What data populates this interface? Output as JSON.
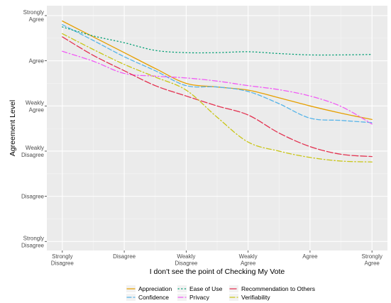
{
  "chart_data": {
    "type": "line",
    "xlabel": "I don't see the point of Checking My Vote",
    "ylabel": "Agreement Level",
    "x_categories": [
      [
        "Strongly",
        "Disagree"
      ],
      [
        "Disagree"
      ],
      [
        "Weakly",
        "Disagree"
      ],
      [
        "Weakly",
        "Agree"
      ],
      [
        "Agree"
      ],
      [
        "Strongly",
        "Agree"
      ]
    ],
    "y_categories": [
      [
        "Strongly",
        "Disagree"
      ],
      [
        "Disagree"
      ],
      [
        "Weakly",
        "Disagree"
      ],
      [
        "Weakly",
        "Agree"
      ],
      [
        "Agree"
      ],
      [
        "Strongly",
        "Agree"
      ]
    ],
    "xlim": [
      0.75,
      6.25
    ],
    "ylim": [
      0.8,
      6.22
    ],
    "grid": true,
    "legend_position": "bottom",
    "series": [
      {
        "name": "Appreciation",
        "color": "#E69F00",
        "dash": "solid",
        "x": [
          1,
          1.5,
          2,
          2.5,
          3,
          3.5,
          4,
          4.5,
          5,
          5.5,
          6
        ],
        "y": [
          5.88,
          5.53,
          5.18,
          4.83,
          4.5,
          4.42,
          4.35,
          4.18,
          4.0,
          3.84,
          3.7
        ]
      },
      {
        "name": "Confidence",
        "color": "#56B4E9",
        "dash": "6,3",
        "x": [
          1,
          1.5,
          2,
          2.5,
          3,
          3.5,
          4,
          4.5,
          5,
          5.5,
          6
        ],
        "y": [
          5.8,
          5.45,
          5.09,
          4.78,
          4.45,
          4.42,
          4.32,
          4.05,
          3.73,
          3.68,
          3.63
        ]
      },
      {
        "name": "Ease of Use",
        "color": "#009E73",
        "dash": "1.2,3.5",
        "x": [
          1,
          1.5,
          2,
          2.5,
          3,
          3.5,
          4,
          4.5,
          5,
          5.5,
          6
        ],
        "y": [
          5.75,
          5.55,
          5.4,
          5.23,
          5.18,
          5.18,
          5.2,
          5.16,
          5.13,
          5.13,
          5.14
        ]
      },
      {
        "name": "Privacy",
        "color": "#F15BF5",
        "dash": "7,3,1.5,3",
        "x": [
          1,
          1.5,
          2,
          2.5,
          3,
          3.5,
          4,
          4.5,
          5,
          5.5,
          6
        ],
        "y": [
          5.21,
          4.99,
          4.72,
          4.66,
          4.62,
          4.55,
          4.45,
          4.36,
          4.22,
          3.99,
          3.6
        ]
      },
      {
        "name": "Recommendation to Others",
        "color": "#E3304F",
        "dash": "9,3",
        "x": [
          1,
          1.5,
          2,
          2.5,
          3,
          3.5,
          4,
          4.5,
          5,
          5.5,
          6
        ],
        "y": [
          5.53,
          5.12,
          4.78,
          4.45,
          4.22,
          4.0,
          3.8,
          3.4,
          3.1,
          2.93,
          2.88
        ]
      },
      {
        "name": "Verifiability",
        "color": "#C9C516",
        "dash": "7,3,1.5,3",
        "x": [
          1,
          1.5,
          2,
          2.5,
          3,
          3.5,
          4,
          4.5,
          5,
          5.5,
          6
        ],
        "y": [
          5.6,
          5.25,
          4.92,
          4.64,
          4.35,
          3.75,
          3.2,
          3.0,
          2.86,
          2.78,
          2.76
        ]
      }
    ]
  }
}
